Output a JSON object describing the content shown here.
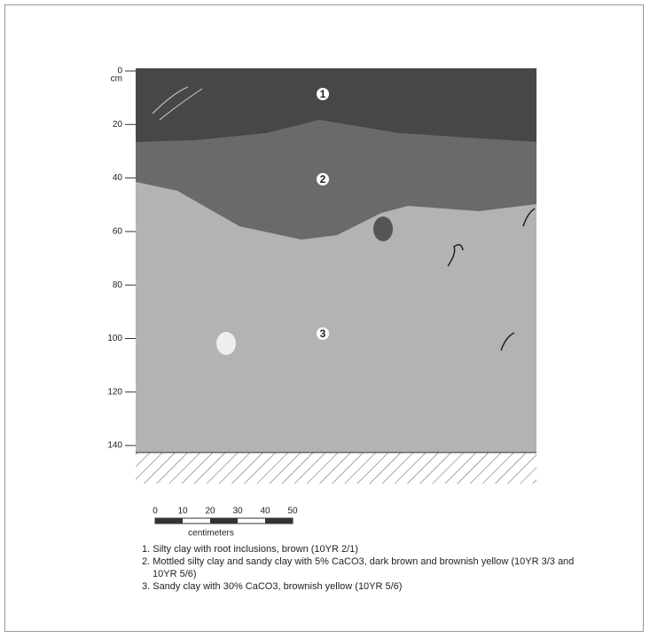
{
  "depth": {
    "unit": "cm",
    "labels": [
      "0",
      "20",
      "40",
      "60",
      "80",
      "100",
      "120",
      "140"
    ]
  },
  "layers": [
    {
      "number": "1",
      "description": "1. Silty clay with root inclusions, brown (10YR 2/1)"
    },
    {
      "number": "2",
      "description": "2. Mottled silty clay and sandy clay with 5% CaCO3, dark brown and brownish yellow (10YR 3/3 and 10YR 5/6)"
    },
    {
      "number": "3",
      "description": "3. Sandy clay with 30% CaCO3, brownish yellow (10YR 5/6)"
    }
  ],
  "scale": {
    "labels": [
      "0",
      "10",
      "20",
      "30",
      "40",
      "50"
    ],
    "unit": "centimeters"
  }
}
